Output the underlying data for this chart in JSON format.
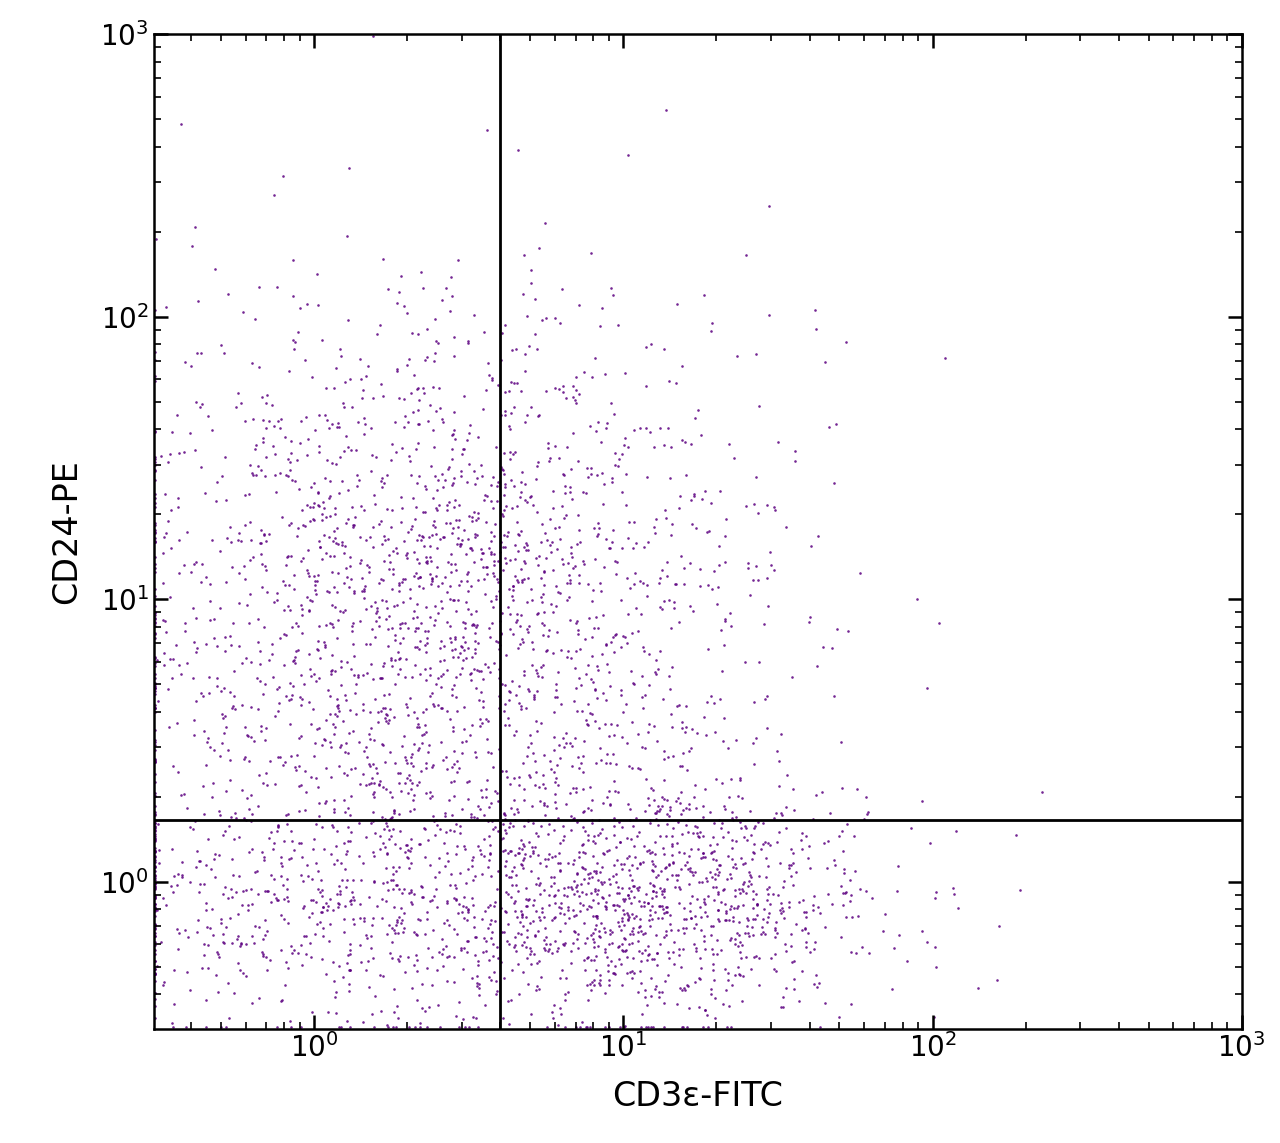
{
  "xlabel": "CD3ε-FITC",
  "ylabel": "CD24-PE",
  "xlim_log": [
    -0.52,
    3.0
  ],
  "ylim_log": [
    -0.52,
    3.0
  ],
  "xline": 4.0,
  "yline": 1.65,
  "dot_color": "#5C0080",
  "dot_size": 3.5,
  "dot_alpha": 0.85,
  "background_color": "#ffffff",
  "seed": 42,
  "clusters": {
    "upper_left": {
      "n": 2200,
      "x_mean_log": 0.35,
      "x_sigma": 0.52,
      "y_mean_log": 0.95,
      "y_sigma": 0.55
    },
    "lower_right": {
      "n": 1100,
      "x_mean_log": 1.1,
      "x_sigma": 0.38,
      "y_mean_log": -0.05,
      "y_sigma": 0.22
    },
    "lower_left": {
      "n": 600,
      "x_mean_log": 0.1,
      "x_sigma": 0.48,
      "y_mean_log": -0.08,
      "y_sigma": 0.22
    },
    "upper_right_scatter": {
      "n": 120,
      "x_mean_log": 0.75,
      "x_sigma": 0.45,
      "y_mean_log": 1.2,
      "y_sigma": 0.4
    }
  }
}
